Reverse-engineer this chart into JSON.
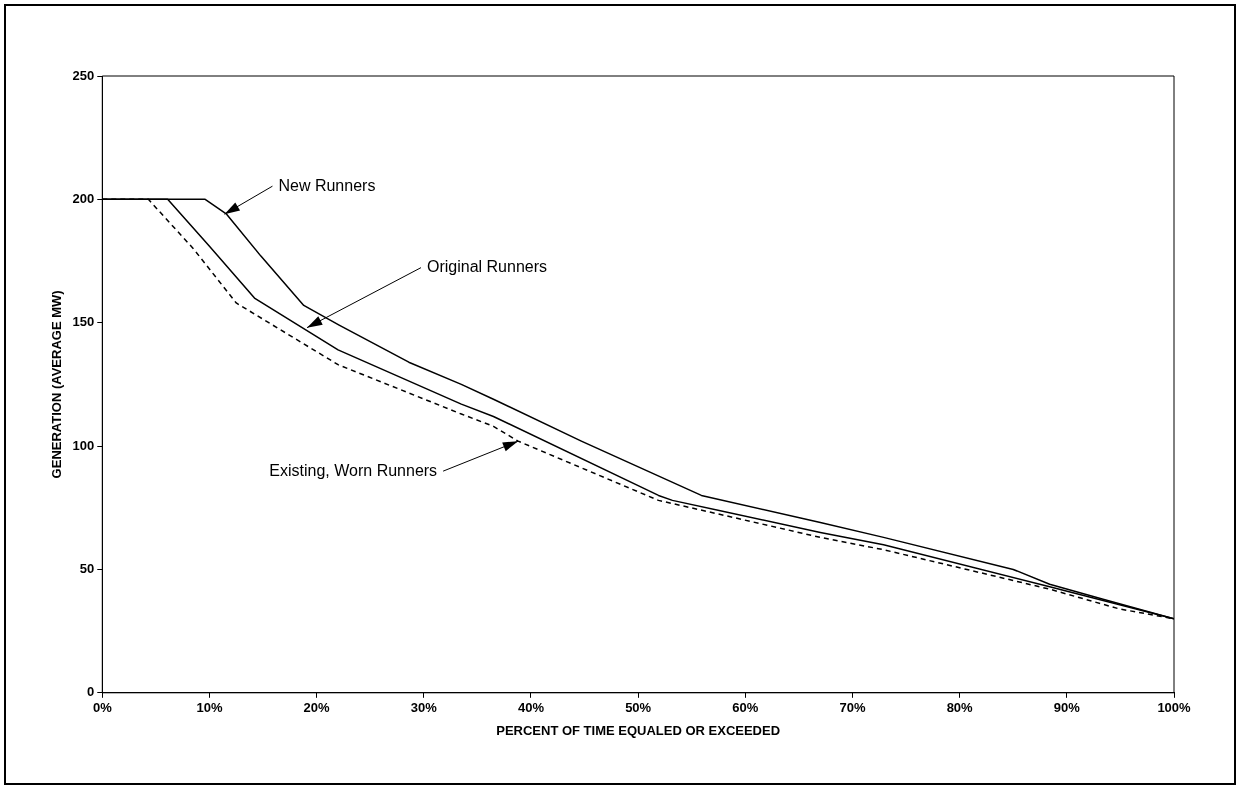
{
  "chart_data": {
    "type": "line",
    "xlabel": "PERCENT OF TIME EQUALED OR EXCEEDED",
    "ylabel": "GENERATION (AVERAGE MW)",
    "xlim": [
      0,
      100
    ],
    "xticks": [
      {
        "value": 0,
        "label": "0%"
      },
      {
        "value": 10,
        "label": "10%"
      },
      {
        "value": 20,
        "label": "20%"
      },
      {
        "value": 30,
        "label": "30%"
      },
      {
        "value": 40,
        "label": "40%"
      },
      {
        "value": 50,
        "label": "50%"
      },
      {
        "value": 60,
        "label": "60%"
      },
      {
        "value": 70,
        "label": "70%"
      },
      {
        "value": 80,
        "label": "80%"
      },
      {
        "value": 90,
        "label": "90%"
      },
      {
        "value": 100,
        "label": "100%"
      }
    ],
    "ylim": [
      0,
      250
    ],
    "yticks": [
      0,
      50,
      100,
      150,
      200,
      250
    ],
    "grid": false,
    "legend": false,
    "marker": "none",
    "series": [
      {
        "color": "#000000",
        "line_style": "solid",
        "x": [
          0,
          9.6,
          11.6,
          14.8,
          18.8,
          22.1,
          28.6,
          33.5,
          36.5,
          44.7,
          55.9,
          67,
          72.9,
          85,
          88.4,
          93.3,
          100
        ],
        "values": [
          200,
          200,
          194,
          177,
          157,
          149,
          134,
          125,
          119,
          102,
          80,
          69,
          63,
          50,
          44,
          38,
          30
        ]
      },
      {
        "color": "#000000",
        "line_style": "solid",
        "x": [
          0,
          6.1,
          10,
          14.2,
          22,
          33.5,
          36.5,
          51.9,
          53.2,
          67,
          72.9,
          88.4,
          100
        ],
        "values": [
          200,
          200,
          181,
          160,
          139,
          117,
          112,
          80,
          78,
          65,
          60,
          43,
          30
        ]
      },
      {
        "color": "#000000",
        "line_style": "dashed",
        "x": [
          0,
          4.3,
          8.5,
          12.5,
          22,
          33.5,
          36.5,
          38.8,
          51.9,
          67,
          72.9,
          88.4,
          94.9,
          100
        ],
        "values": [
          200,
          200,
          180,
          158,
          133,
          113,
          108,
          102,
          78,
          63,
          58,
          42,
          34,
          30
        ]
      }
    ],
    "annotations": [
      {
        "text": "New Runners",
        "x": 11.4,
        "y": 194
      },
      {
        "text": "Original Runners",
        "x": 19.1,
        "y": 148
      },
      {
        "text": "Existing, Worn Runners",
        "x": 38.8,
        "y": 102
      }
    ]
  }
}
